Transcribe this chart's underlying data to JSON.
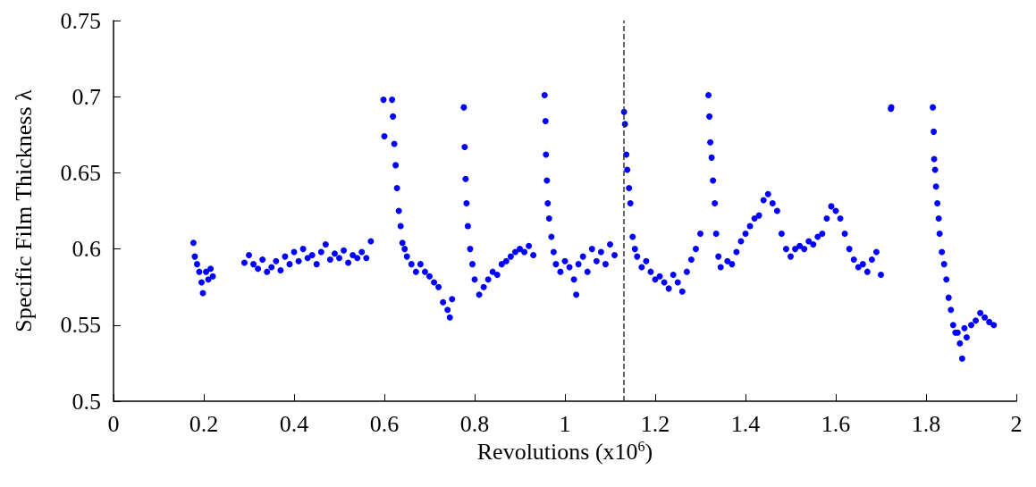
{
  "chart_data": {
    "type": "scatter",
    "xlabel": "Revolutions (x10$^{6}$)",
    "ylabel": "Specific Film Thickness λ",
    "xlim": [
      0,
      2
    ],
    "xticks": [
      0,
      0.2,
      0.4,
      0.6,
      0.8,
      1,
      1.2,
      1.4,
      1.6,
      1.8,
      2
    ],
    "ylim": [
      0.5,
      0.75
    ],
    "yticks": [
      0.5,
      0.55,
      0.6,
      0.65,
      0.7,
      0.75
    ],
    "grid": false,
    "marker": "circle",
    "ref_lines": [
      {
        "axis": "x",
        "value": 1.131,
        "color": "#333333",
        "line_style": "dashed"
      }
    ],
    "series": [
      {
        "color": "#0000ff",
        "x": [
          0.177,
          0.18,
          0.185,
          0.19,
          0.195,
          0.198,
          0.205,
          0.21,
          0.215,
          0.22,
          0.29,
          0.3,
          0.31,
          0.32,
          0.33,
          0.34,
          0.35,
          0.36,
          0.37,
          0.38,
          0.39,
          0.4,
          0.41,
          0.42,
          0.43,
          0.44,
          0.45,
          0.46,
          0.47,
          0.48,
          0.49,
          0.5,
          0.51,
          0.52,
          0.53,
          0.54,
          0.55,
          0.56,
          0.57,
          0.598,
          0.6,
          0.617,
          0.619,
          0.622,
          0.625,
          0.628,
          0.632,
          0.636,
          0.64,
          0.645,
          0.65,
          0.66,
          0.67,
          0.68,
          0.69,
          0.7,
          0.71,
          0.72,
          0.73,
          0.74,
          0.745,
          0.75,
          0.776,
          0.778,
          0.78,
          0.782,
          0.785,
          0.79,
          0.795,
          0.8,
          0.81,
          0.82,
          0.83,
          0.84,
          0.85,
          0.86,
          0.87,
          0.88,
          0.89,
          0.9,
          0.91,
          0.92,
          0.93,
          0.955,
          0.957,
          0.958,
          0.96,
          0.962,
          0.965,
          0.97,
          0.975,
          0.98,
          0.99,
          1.0,
          1.01,
          1.02,
          1.025,
          1.03,
          1.04,
          1.05,
          1.06,
          1.07,
          1.08,
          1.09,
          1.1,
          1.11,
          1.131,
          1.133,
          1.136,
          1.138,
          1.142,
          1.145,
          1.15,
          1.155,
          1.16,
          1.17,
          1.18,
          1.19,
          1.2,
          1.21,
          1.22,
          1.23,
          1.24,
          1.25,
          1.26,
          1.27,
          1.28,
          1.29,
          1.3,
          1.318,
          1.32,
          1.322,
          1.325,
          1.328,
          1.332,
          1.335,
          1.34,
          1.345,
          1.36,
          1.37,
          1.38,
          1.39,
          1.4,
          1.41,
          1.42,
          1.43,
          1.44,
          1.45,
          1.46,
          1.47,
          1.48,
          1.49,
          1.5,
          1.51,
          1.52,
          1.53,
          1.54,
          1.55,
          1.56,
          1.57,
          1.58,
          1.59,
          1.6,
          1.61,
          1.62,
          1.63,
          1.64,
          1.65,
          1.66,
          1.67,
          1.68,
          1.69,
          1.7,
          1.722,
          1.723,
          1.815,
          1.817,
          1.818,
          1.82,
          1.822,
          1.825,
          1.828,
          1.83,
          1.835,
          1.84,
          1.845,
          1.85,
          1.855,
          1.86,
          1.865,
          1.87,
          1.875,
          1.88,
          1.885,
          1.89,
          1.9,
          1.91,
          1.92,
          1.93,
          1.94,
          1.95
        ],
        "values": [
          0.604,
          0.595,
          0.59,
          0.585,
          0.578,
          0.571,
          0.585,
          0.58,
          0.587,
          0.582,
          0.591,
          0.596,
          0.59,
          0.587,
          0.593,
          0.585,
          0.588,
          0.592,
          0.586,
          0.595,
          0.59,
          0.598,
          0.592,
          0.6,
          0.594,
          0.596,
          0.59,
          0.598,
          0.603,
          0.593,
          0.597,
          0.594,
          0.599,
          0.591,
          0.596,
          0.594,
          0.598,
          0.594,
          0.605,
          0.698,
          0.674,
          0.698,
          0.687,
          0.669,
          0.655,
          0.64,
          0.625,
          0.615,
          0.604,
          0.6,
          0.595,
          0.59,
          0.585,
          0.59,
          0.585,
          0.582,
          0.578,
          0.575,
          0.565,
          0.56,
          0.555,
          0.567,
          0.693,
          0.667,
          0.646,
          0.63,
          0.615,
          0.6,
          0.59,
          0.58,
          0.57,
          0.575,
          0.58,
          0.585,
          0.583,
          0.59,
          0.592,
          0.595,
          0.598,
          0.6,
          0.598,
          0.602,
          0.596,
          0.701,
          0.684,
          0.662,
          0.645,
          0.63,
          0.62,
          0.608,
          0.598,
          0.59,
          0.585,
          0.592,
          0.588,
          0.58,
          0.57,
          0.59,
          0.595,
          0.585,
          0.6,
          0.592,
          0.598,
          0.59,
          0.603,
          0.596,
          0.69,
          0.682,
          0.662,
          0.652,
          0.64,
          0.63,
          0.608,
          0.6,
          0.595,
          0.588,
          0.592,
          0.585,
          0.58,
          0.582,
          0.578,
          0.574,
          0.583,
          0.578,
          0.572,
          0.585,
          0.593,
          0.6,
          0.61,
          0.701,
          0.687,
          0.67,
          0.66,
          0.645,
          0.63,
          0.61,
          0.595,
          0.588,
          0.592,
          0.59,
          0.598,
          0.605,
          0.61,
          0.615,
          0.62,
          0.622,
          0.632,
          0.636,
          0.63,
          0.625,
          0.61,
          0.6,
          0.595,
          0.6,
          0.602,
          0.6,
          0.605,
          0.603,
          0.608,
          0.61,
          0.62,
          0.628,
          0.625,
          0.62,
          0.61,
          0.6,
          0.593,
          0.588,
          0.59,
          0.585,
          0.593,
          0.598,
          0.583,
          0.692,
          0.693,
          0.693,
          0.677,
          0.659,
          0.652,
          0.641,
          0.63,
          0.62,
          0.61,
          0.598,
          0.59,
          0.58,
          0.568,
          0.56,
          0.55,
          0.545,
          0.545,
          0.538,
          0.528,
          0.548,
          0.542,
          0.55,
          0.553,
          0.558,
          0.555,
          0.552,
          0.55
        ]
      }
    ]
  }
}
